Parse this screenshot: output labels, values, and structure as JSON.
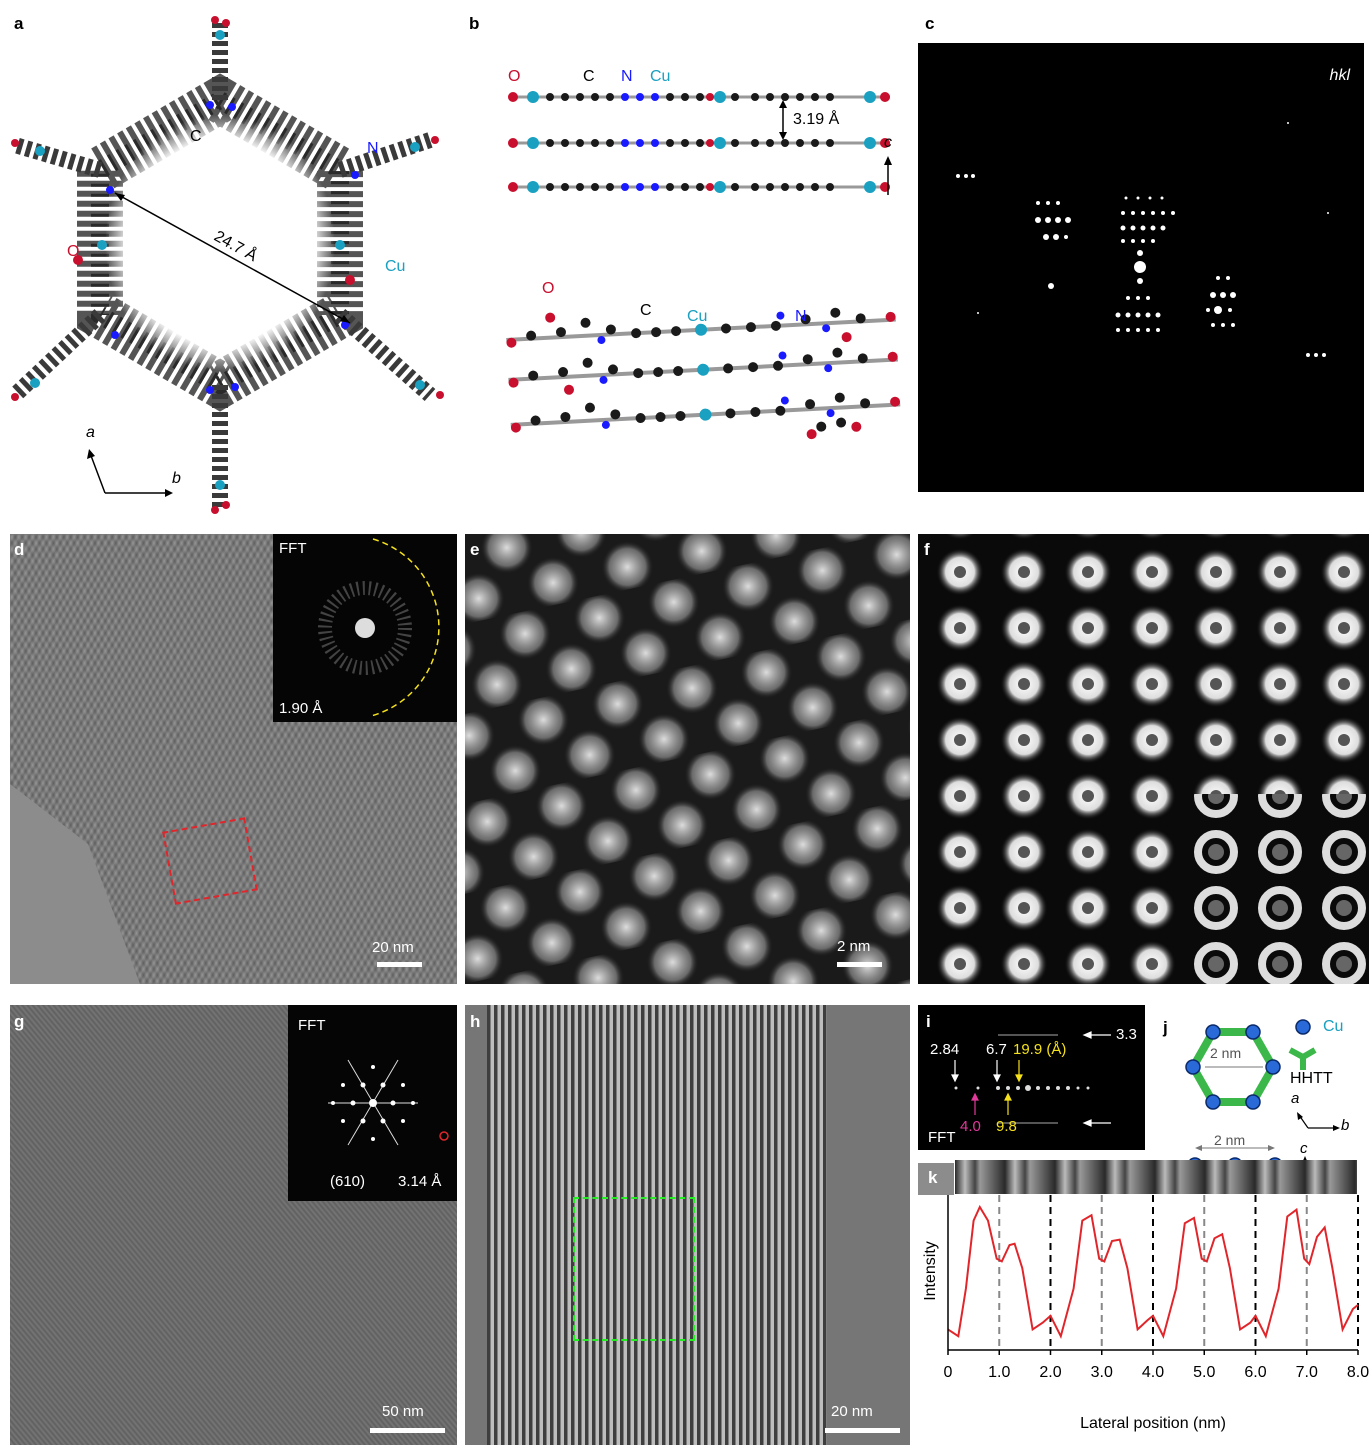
{
  "panels": {
    "a": "a",
    "b": "b",
    "c": "c",
    "d": "d",
    "e": "e",
    "f": "f",
    "g": "g",
    "h": "h",
    "i": "i",
    "j": "j",
    "k": "k"
  },
  "panel_a": {
    "distance": "24.7 Å",
    "atoms": {
      "C": "C",
      "N": "N",
      "O": "O",
      "Cu": "Cu"
    },
    "axes": {
      "a": "a",
      "b": "b"
    }
  },
  "panel_b": {
    "top_atoms": {
      "O": "O",
      "C": "C",
      "N": "N",
      "Cu": "Cu"
    },
    "spacing": "3.19 Å",
    "axis_c": "c",
    "bottom_atoms": {
      "O": "O",
      "C": "C",
      "Cu": "Cu",
      "N": "N"
    }
  },
  "panel_c": {
    "label": "hkl"
  },
  "panel_d": {
    "fft": "FFT",
    "resolution": "1.90 Å",
    "scale": "20 nm"
  },
  "panel_e": {
    "scale": "2 nm"
  },
  "panel_g": {
    "fft": "FFT",
    "reflection": "(610)",
    "resolution": "3.14 Å",
    "scale": "50 nm"
  },
  "panel_h": {
    "scale": "20 nm"
  },
  "panel_i": {
    "fft": "FFT",
    "v33": "3.3",
    "v284": "2.84",
    "v67": "6.7",
    "v199": "19.9 (Å)",
    "v40": "4.0",
    "v98": "9.8"
  },
  "panel_j": {
    "cu": "Cu",
    "hhtt": "HHTT",
    "pore": "2 nm",
    "stack": "2 nm",
    "axis_a": "a",
    "axis_b": "b",
    "axis_c": "c"
  },
  "colors": {
    "oxygen": "#c8102e",
    "nitrogen": "#1a1aff",
    "copper": "#1aa0c0",
    "carbon": "#1a1a1a",
    "linker": "#3cb84a",
    "profile": "#e0262b",
    "fft_yellow": "#f5e11a",
    "fft_pink": "#e03a9a",
    "box_red": "#e0262b",
    "box_green": "#22ee22"
  },
  "chart_data": {
    "type": "line",
    "title": "",
    "xlabel": "Lateral position (nm)",
    "ylabel": "Intensity",
    "xlim": [
      0,
      8
    ],
    "x_ticks": [
      "0",
      "1.0",
      "2.0",
      "3.0",
      "4.0",
      "5.0",
      "6.0",
      "7.0",
      "8.0"
    ],
    "gray_dashed_x": [
      1,
      3,
      5,
      7
    ],
    "black_dashed_x": [
      2,
      4,
      6,
      8
    ],
    "series": [
      {
        "x": [
          0.0,
          0.2,
          0.35,
          0.5,
          0.62,
          0.78,
          0.95,
          1.05,
          1.2,
          1.3,
          1.45,
          1.65,
          1.85,
          2.0,
          2.2,
          2.45,
          2.62,
          2.8,
          2.95,
          3.05,
          3.2,
          3.35,
          3.5,
          3.7,
          3.9,
          4.0,
          4.2,
          4.45,
          4.62,
          4.8,
          4.95,
          5.05,
          5.2,
          5.35,
          5.5,
          5.7,
          5.9,
          6.0,
          6.2,
          6.45,
          6.62,
          6.8,
          6.95,
          7.05,
          7.2,
          7.35,
          7.5,
          7.7,
          7.9,
          8.0
        ],
        "y": [
          0.1,
          0.05,
          0.4,
          0.9,
          1.0,
          0.9,
          0.62,
          0.6,
          0.72,
          0.73,
          0.55,
          0.1,
          0.15,
          0.2,
          0.05,
          0.4,
          0.9,
          0.94,
          0.62,
          0.6,
          0.75,
          0.76,
          0.55,
          0.1,
          0.17,
          0.2,
          0.05,
          0.4,
          0.88,
          0.92,
          0.62,
          0.6,
          0.77,
          0.8,
          0.55,
          0.1,
          0.15,
          0.2,
          0.05,
          0.4,
          0.93,
          0.98,
          0.62,
          0.58,
          0.78,
          0.85,
          0.55,
          0.1,
          0.25,
          0.28
        ]
      }
    ]
  }
}
